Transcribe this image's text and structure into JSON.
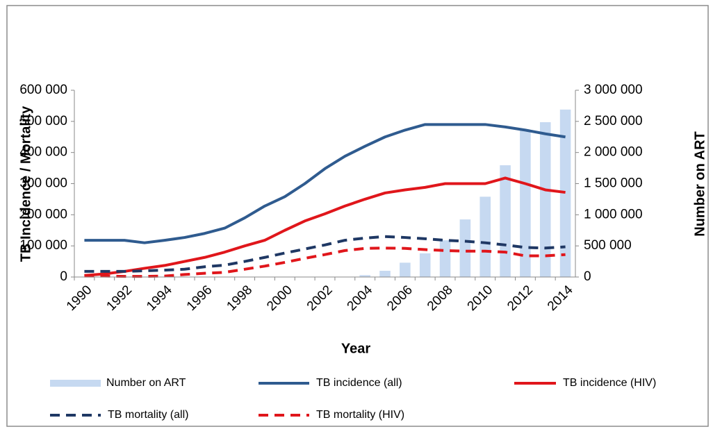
{
  "chart_data": {
    "type": "combo",
    "xlabel": "Year",
    "ylabel": "TB Incidence / Mortality",
    "y2label": "Number on ART",
    "categories": [
      "1990",
      null,
      "1992",
      null,
      "1994",
      null,
      "1996",
      null,
      "1998",
      null,
      "2000",
      null,
      "2002",
      null,
      "2004",
      null,
      "2006",
      null,
      "2008",
      null,
      "2010",
      null,
      "2012",
      null,
      "2014"
    ],
    "ylim": [
      0,
      600000
    ],
    "yticks": [
      0,
      {
        "value": 100000,
        "label": "100 000"
      },
      {
        "value": 200000,
        "label": "200 000"
      },
      {
        "value": 300000,
        "label": "300 000"
      },
      {
        "value": 400000,
        "label": "400 000"
      },
      {
        "value": 500000,
        "label": "500 000"
      },
      {
        "value": 600000,
        "label": "600 000"
      }
    ],
    "y2lim": [
      0,
      3000000
    ],
    "y2ticks": [
      0,
      {
        "value": 500000,
        "label": "500 000"
      },
      {
        "value": 1000000,
        "label": "1 000 000"
      },
      {
        "value": 1500000,
        "label": "1 500 000"
      },
      {
        "value": 2000000,
        "label": "2 000 000"
      },
      {
        "value": 2500000,
        "label": "2 500 000"
      },
      {
        "value": 3000000,
        "label": "3 000 000"
      }
    ],
    "grid": false,
    "legend": "bottom",
    "series": [
      {
        "name": "Number on ART",
        "type": "bar",
        "axis": "y2",
        "color": "#c6d9f1",
        "values": [
          0,
          0,
          0,
          0,
          0,
          0,
          0,
          0,
          0,
          0,
          0,
          0,
          0,
          0,
          30000,
          100000,
          230000,
          380000,
          590000,
          925000,
          1290000,
          1795000,
          2365000,
          2487000,
          2690000
        ]
      },
      {
        "name": "TB incidence (all)",
        "type": "line",
        "color": "#2f5b8f",
        "dash": false,
        "values": [
          118000,
          118000,
          118000,
          110000,
          118000,
          127000,
          140000,
          157000,
          190000,
          228000,
          258000,
          300000,
          348000,
          388000,
          420000,
          450000,
          472000,
          490000,
          490000,
          490000,
          490000,
          482000,
          472000,
          460000,
          450000
        ]
      },
      {
        "name": "TB incidence (HIV)",
        "type": "line",
        "color": "#e0161b",
        "dash": false,
        "values": [
          5000,
          10000,
          18000,
          28000,
          37000,
          50000,
          63000,
          80000,
          100000,
          118000,
          150000,
          180000,
          203000,
          228000,
          250000,
          270000,
          280000,
          288000,
          300000,
          300000,
          300000,
          318000,
          300000,
          280000,
          272000
        ]
      },
      {
        "name": "TB mortality (all)",
        "type": "line",
        "color": "#1f3864",
        "dash": true,
        "values": [
          18000,
          18000,
          18000,
          20000,
          22000,
          25000,
          33000,
          38000,
          50000,
          63000,
          77000,
          90000,
          103000,
          118000,
          125000,
          130000,
          127000,
          123000,
          118000,
          115000,
          110000,
          103000,
          95000,
          93000,
          97000
        ]
      },
      {
        "name": "TB mortality (HIV)",
        "type": "line",
        "color": "#e0161b",
        "dash": true,
        "values": [
          3000,
          3000,
          2000,
          2000,
          3000,
          8000,
          12000,
          15000,
          25000,
          35000,
          47000,
          60000,
          72000,
          85000,
          92000,
          93000,
          92000,
          88000,
          85000,
          83000,
          83000,
          80000,
          68000,
          68000,
          72000
        ]
      }
    ]
  }
}
